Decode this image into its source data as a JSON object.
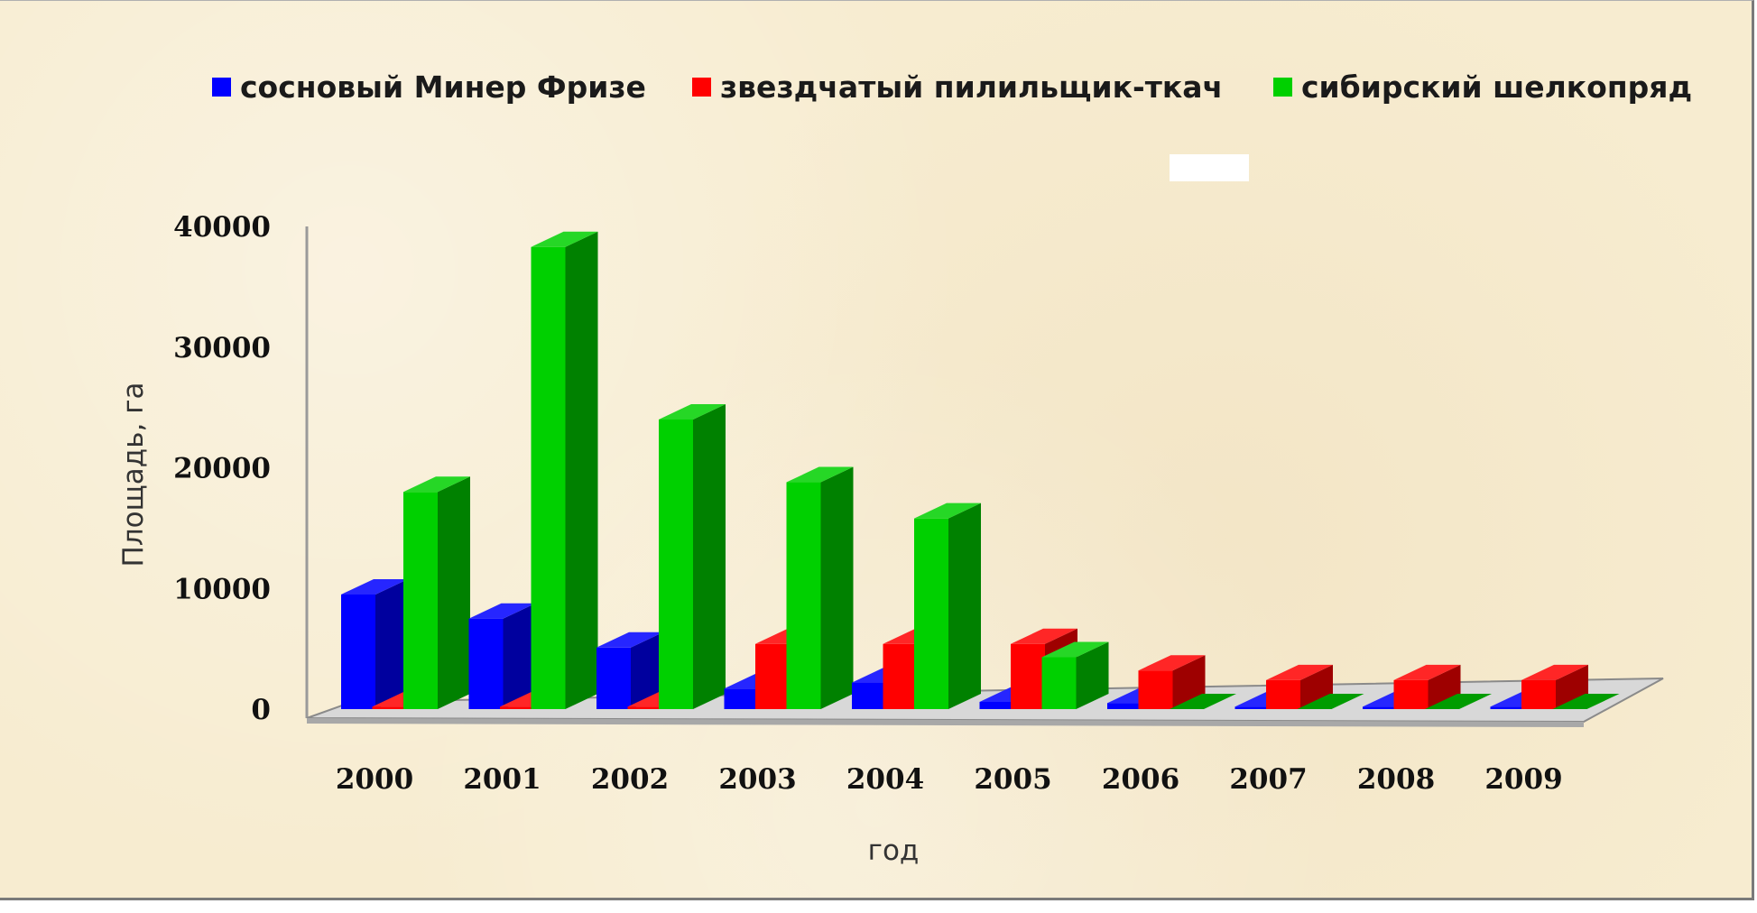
{
  "chart_data": {
    "type": "bar",
    "categories": [
      "2000",
      "2001",
      "2002",
      "2003",
      "2004",
      "2005",
      "2006",
      "2007",
      "2008",
      "2009"
    ],
    "series": [
      {
        "name": "сосновый Минер Фризе",
        "color": "#0000ff",
        "values": [
          9500,
          7500,
          5100,
          1700,
          2200,
          600,
          500,
          200,
          200,
          200
        ]
      },
      {
        "name": "звездчатый пилильщик-ткач",
        "color": "#ff0000",
        "values": [
          200,
          200,
          200,
          5400,
          5400,
          5400,
          3200,
          2400,
          2400,
          2400
        ]
      },
      {
        "name": "сибирский шелкопряд",
        "color": "#00d000",
        "values": [
          18000,
          38300,
          24000,
          18800,
          15800,
          4300,
          0,
          0,
          0,
          0
        ]
      }
    ],
    "yticks": [
      "0",
      "10000",
      "20000",
      "30000",
      "40000"
    ],
    "ylim": [
      0,
      40000
    ],
    "xlabel": "год",
    "ylabel": "Площадь, га",
    "legend_position": "top",
    "style": "3d-clustered-column"
  }
}
